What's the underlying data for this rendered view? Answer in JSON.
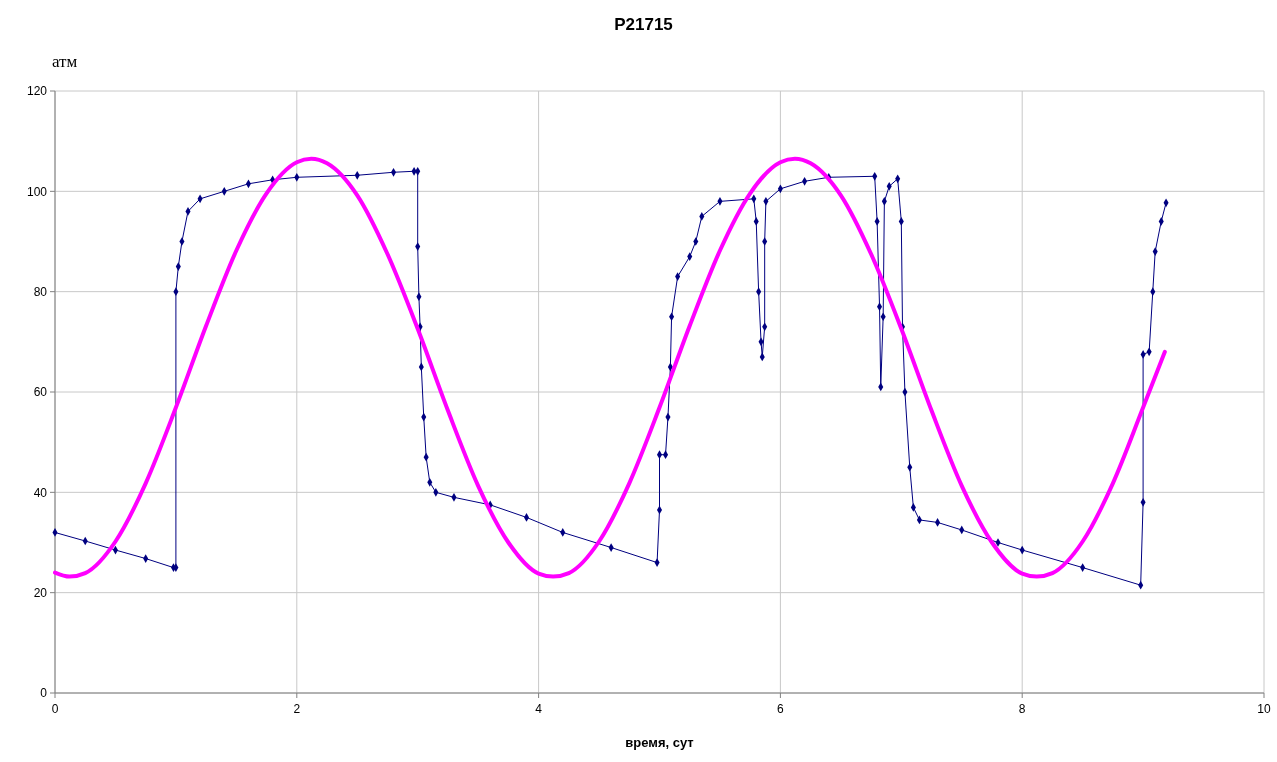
{
  "chart_data": {
    "type": "line",
    "title": "P21715",
    "xlabel": "время, сут",
    "ylabel": "атм",
    "xlim": [
      0,
      10
    ],
    "xticks": [
      0,
      2,
      4,
      6,
      8,
      10
    ],
    "ylim": [
      0,
      120
    ],
    "yticks": [
      0,
      20,
      40,
      60,
      80,
      100,
      120
    ],
    "grid": true,
    "line_style": "solid",
    "series": [
      {
        "color": "#000080",
        "marker": "diamond",
        "x": [
          0,
          0.25,
          0.5,
          0.75,
          0.98,
          1.0,
          1.0,
          1.02,
          1.05,
          1.1,
          1.2,
          1.4,
          1.6,
          1.8,
          2.0,
          2.5,
          2.8,
          2.97,
          3.0,
          3.0,
          3.01,
          3.02,
          3.03,
          3.05,
          3.07,
          3.1,
          3.15,
          3.3,
          3.6,
          3.9,
          4.2,
          4.6,
          4.98,
          5.0,
          5.0,
          5.05,
          5.07,
          5.09,
          5.1,
          5.15,
          5.25,
          5.3,
          5.35,
          5.5,
          5.78,
          5.8,
          5.82,
          5.84,
          5.85,
          5.87,
          5.87,
          5.88,
          6.0,
          6.2,
          6.4,
          6.78,
          6.8,
          6.82,
          6.83,
          6.85,
          6.86,
          6.9,
          6.97,
          7.0,
          7.01,
          7.03,
          7.07,
          7.1,
          7.15,
          7.3,
          7.5,
          7.8,
          8.0,
          8.5,
          8.98,
          9.0,
          9.0,
          9.05,
          9.08,
          9.1,
          9.15,
          9.19
        ],
        "values": [
          32,
          30.3,
          28.5,
          26.8,
          25,
          25,
          80,
          85,
          90,
          96,
          98.5,
          100,
          101.5,
          102.3,
          102.8,
          103.2,
          103.8,
          104,
          104,
          89,
          79,
          73,
          65,
          55,
          47,
          42,
          40,
          39,
          37.5,
          35,
          32,
          29,
          26,
          36.5,
          47.5,
          47.5,
          55,
          65,
          75,
          83,
          87,
          90,
          95,
          98,
          98.5,
          94,
          80,
          70,
          67,
          73,
          90,
          98,
          100.5,
          102,
          102.8,
          103,
          94,
          77,
          61,
          75,
          98,
          101,
          102.5,
          94,
          73,
          60,
          45,
          37,
          34.5,
          34,
          32.5,
          30,
          28.5,
          25,
          21.5,
          38,
          67.5,
          68,
          80,
          88,
          94,
          97.7
        ]
      },
      {
        "color": "#ff00ff",
        "marker": "none",
        "x": [
          0,
          0.12,
          0.25,
          0.5,
          0.75,
          1.0,
          1.25,
          1.5,
          1.75,
          2.0,
          2.12,
          2.25,
          2.5,
          2.75,
          3.0,
          3.25,
          3.5,
          3.75,
          4.0,
          4.12,
          4.25,
          4.5,
          4.75,
          5.0,
          5.25,
          5.5,
          5.75,
          6.0,
          6.12,
          6.25,
          6.5,
          6.75,
          7.0,
          7.25,
          7.5,
          7.75,
          8.0,
          8.12,
          8.25,
          8.5,
          8.75,
          9.0,
          9.18
        ],
        "values": [
          24,
          23.2,
          23.9,
          30.2,
          41.8,
          56.9,
          73.2,
          88.2,
          99.6,
          105.8,
          106.5,
          105.6,
          99.2,
          87.5,
          72.6,
          56.3,
          41.3,
          30,
          23.8,
          23.2,
          23.9,
          30.2,
          41.8,
          56.9,
          73.2,
          88.2,
          99.6,
          105.8,
          106.5,
          105.6,
          99.2,
          87.5,
          72.6,
          56.3,
          41.3,
          30,
          23.8,
          23.2,
          23.9,
          30.2,
          41.8,
          56.9,
          68
        ]
      }
    ]
  }
}
